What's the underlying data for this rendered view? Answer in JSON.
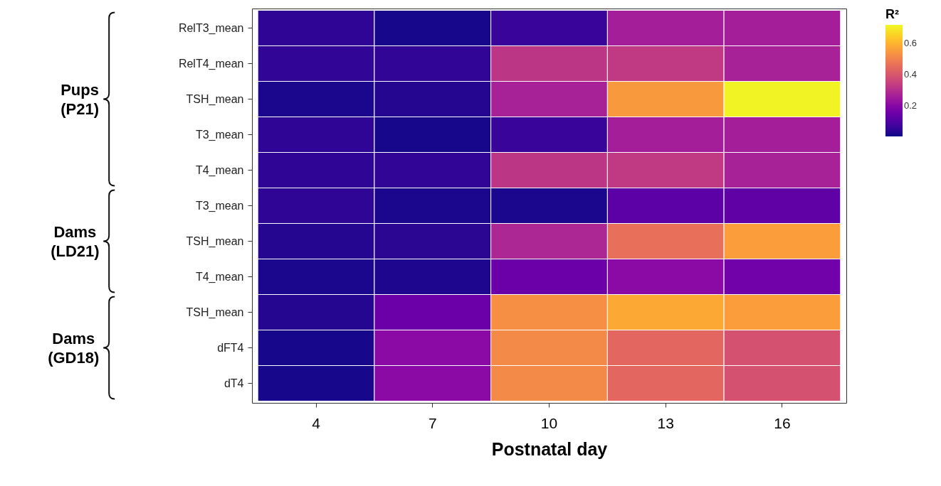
{
  "chart_data": {
    "type": "heatmap",
    "xlabel": "Postnatal day",
    "clabel": "R²",
    "categories": [
      "4",
      "7",
      "10",
      "13",
      "16"
    ],
    "y_categories": [
      "RelT3_mean",
      "RelT4_mean",
      "TSH_mean",
      "T3_mean",
      "T4_mean",
      "T3_mean",
      "TSH_mean",
      "T4_mean",
      "TSH_mean",
      "dFT4",
      "dT4"
    ],
    "cells": [
      [
        0.045,
        0.015,
        0.06,
        0.26,
        0.26
      ],
      [
        0.05,
        0.05,
        0.32,
        0.33,
        0.27
      ],
      [
        0.02,
        0.03,
        0.27,
        0.55,
        0.71
      ],
      [
        0.045,
        0.015,
        0.06,
        0.26,
        0.26
      ],
      [
        0.045,
        0.05,
        0.32,
        0.33,
        0.27
      ],
      [
        0.045,
        0.02,
        0.02,
        0.12,
        0.13
      ],
      [
        0.03,
        0.04,
        0.28,
        0.46,
        0.56
      ],
      [
        0.02,
        0.025,
        0.15,
        0.21,
        0.16
      ],
      [
        0.03,
        0.15,
        0.53,
        0.58,
        0.56
      ],
      [
        0.015,
        0.21,
        0.52,
        0.44,
        0.39
      ],
      [
        0.015,
        0.21,
        0.52,
        0.44,
        0.39
      ]
    ],
    "clim": [
      0.005,
      0.72
    ],
    "cticks": [
      0.2,
      0.4,
      0.6
    ],
    "annotations": [
      "Pups (P21)",
      "Dams (LD21)",
      "Dams (GD18)"
    ]
  }
}
